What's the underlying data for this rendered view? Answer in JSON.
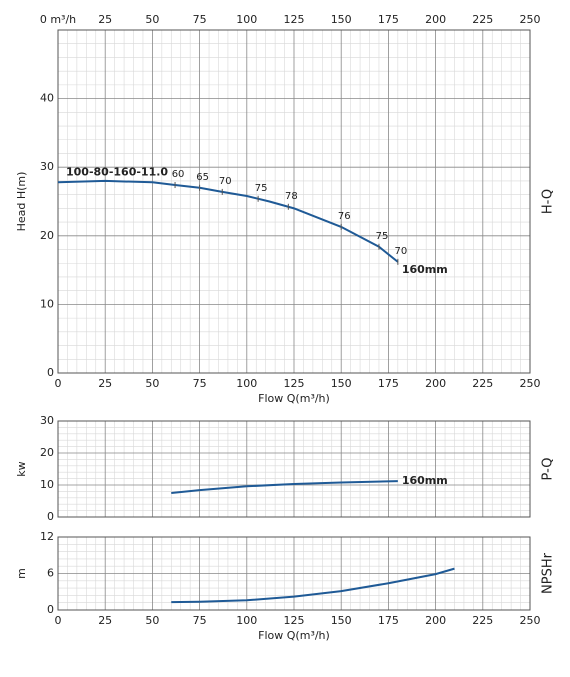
{
  "chart_data": [
    {
      "type": "line",
      "ylabel": "Head H(m)",
      "side_label": "H-Q",
      "xlabel": "Flow Q(m³/h)",
      "xlim": [
        0,
        250
      ],
      "xticks": [
        0,
        25,
        50,
        75,
        100,
        125,
        150,
        175,
        200,
        225,
        250
      ],
      "x2ticks": [
        {
          "value": 0,
          "label": "0 m³/h"
        },
        25,
        50,
        75,
        100,
        125,
        150,
        175,
        200,
        225,
        250
      ],
      "ylim": [
        0,
        50
      ],
      "yticks": [
        0,
        10,
        20,
        30,
        40
      ],
      "grid": true,
      "minor_grid": true,
      "series": [
        {
          "name": "100-80-160-11.0",
          "color": "#1f5a96",
          "x": [
            0,
            25,
            50,
            62,
            75,
            87,
            100,
            112,
            125,
            150,
            170,
            180
          ],
          "values": [
            27.8,
            28.0,
            27.8,
            27.4,
            27.0,
            26.4,
            25.8,
            25.0,
            24.0,
            21.3,
            18.4,
            16.2
          ]
        }
      ],
      "end_label": "160mm",
      "efficiency": {
        "x": [
          62,
          75,
          87,
          106,
          122,
          150,
          170,
          180
        ],
        "values": [
          60,
          65,
          70,
          75,
          78,
          76,
          75,
          70
        ]
      }
    },
    {
      "type": "line",
      "ylabel": "kw",
      "side_label": "P-Q",
      "xlim": [
        0,
        250
      ],
      "xticks": [
        0,
        25,
        50,
        75,
        100,
        125,
        150,
        175,
        200,
        225,
        250
      ],
      "xtick_labels": false,
      "ylim": [
        0,
        30
      ],
      "yticks": [
        0,
        10,
        20,
        30
      ],
      "grid": true,
      "minor_grid": true,
      "series": [
        {
          "name": "160mm",
          "color": "#1f5a96",
          "x": [
            60,
            75,
            100,
            125,
            150,
            180
          ],
          "values": [
            7.5,
            8.4,
            9.6,
            10.3,
            10.8,
            11.2
          ]
        }
      ]
    },
    {
      "type": "line",
      "ylabel": "m",
      "side_label": "NPSHr",
      "xlabel": "Flow Q(m³/h)",
      "xlim": [
        0,
        250
      ],
      "xticks": [
        0,
        25,
        50,
        75,
        100,
        125,
        150,
        175,
        200,
        225,
        250
      ],
      "ylim": [
        0,
        12
      ],
      "yticks": [
        0,
        6,
        12
      ],
      "grid": true,
      "minor_grid": true,
      "series": [
        {
          "color": "#1f5a96",
          "x": [
            60,
            75,
            100,
            125,
            150,
            175,
            200,
            210
          ],
          "values": [
            1.3,
            1.35,
            1.6,
            2.2,
            3.1,
            4.4,
            5.9,
            6.8
          ]
        }
      ]
    }
  ]
}
